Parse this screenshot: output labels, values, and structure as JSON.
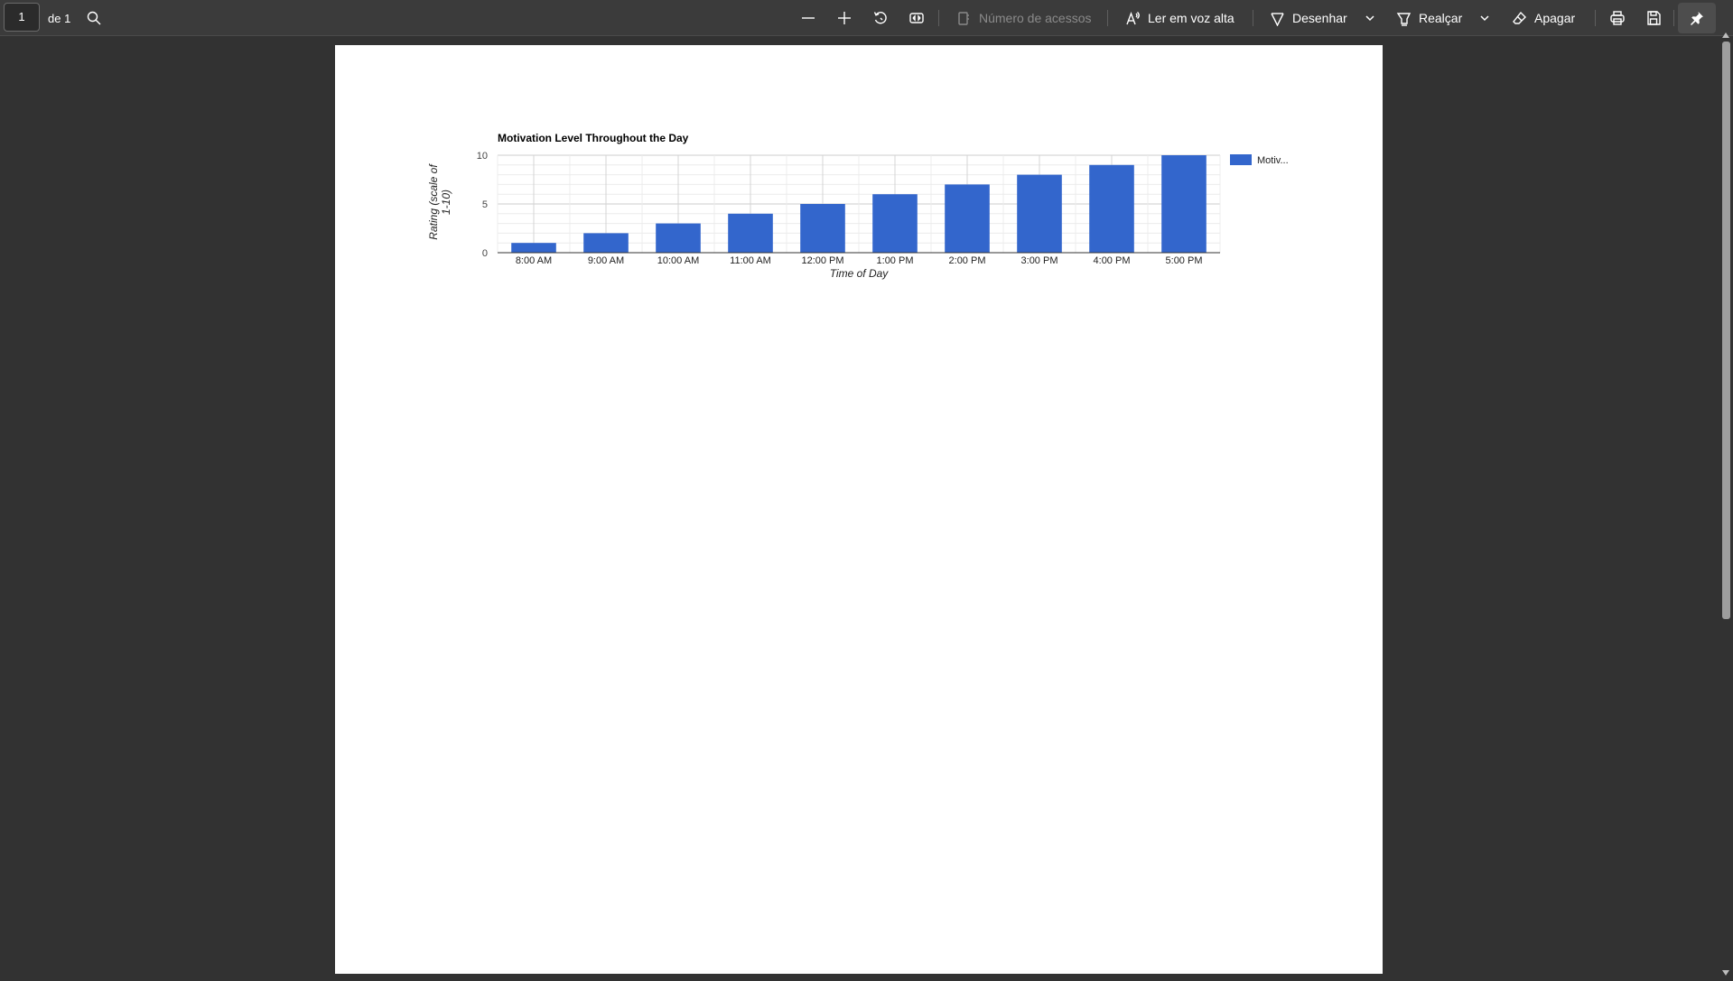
{
  "toolbar": {
    "page_current": "1",
    "page_of": "de 1",
    "access_count_label": "Número de acessos",
    "read_aloud_label": "Ler em voz alta",
    "draw_label": "Desenhar",
    "highlight_label": "Realçar",
    "erase_label": "Apagar"
  },
  "icons": {
    "search": "search-icon",
    "zoom_out": "minus-icon",
    "zoom_in": "plus-icon",
    "rotate": "rotate-icon",
    "fit": "fit-page-icon",
    "access": "page-count-icon",
    "read_aloud": "read-aloud-icon",
    "draw": "draw-icon",
    "highlight": "highlight-icon",
    "erase": "eraser-icon",
    "print": "print-icon",
    "save": "save-icon",
    "pin": "pin-icon"
  },
  "colors": {
    "bar": "#3366cc",
    "toolbar_bg": "#3b3b3b",
    "viewer_bg": "#323232"
  },
  "chart_data": {
    "type": "bar",
    "title": "Motivation Level Throughout the Day",
    "xlabel": "Time of Day",
    "ylabel": "Rating (scale of 1-10)",
    "categories": [
      "8:00 AM",
      "9:00 AM",
      "10:00 AM",
      "11:00 AM",
      "12:00 PM",
      "1:00 PM",
      "2:00 PM",
      "3:00 PM",
      "4:00 PM",
      "5:00 PM"
    ],
    "series": [
      {
        "name": "Motiv...",
        "values": [
          1,
          2,
          3,
          4,
          5,
          6,
          7,
          8,
          9,
          10
        ]
      }
    ],
    "ylim": [
      0,
      10
    ],
    "yticks": [
      0,
      5,
      10
    ],
    "grid": true,
    "legend": "right"
  }
}
